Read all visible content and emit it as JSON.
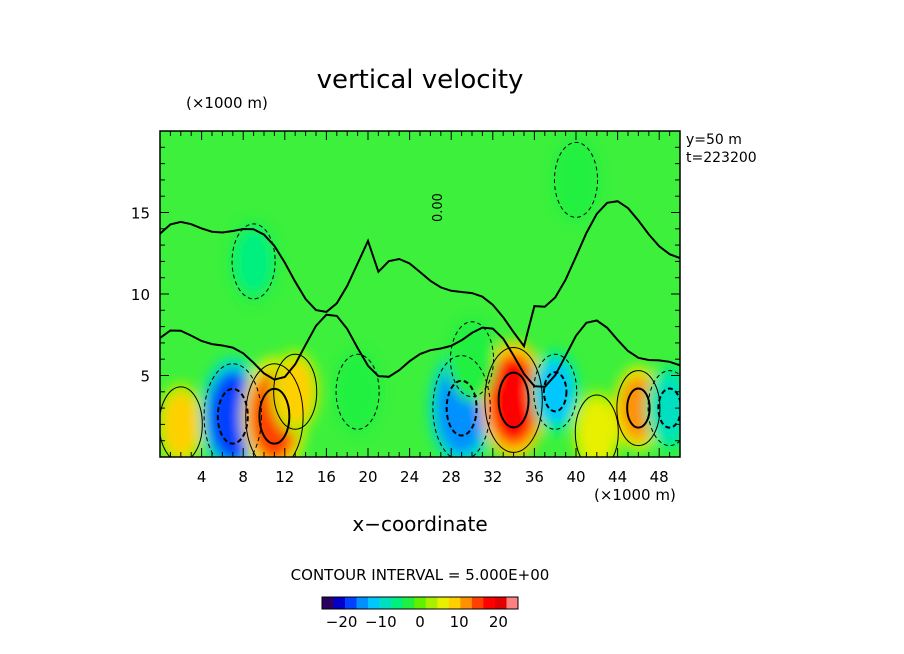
{
  "chart_data": {
    "type": "heatmap",
    "title": "vertical velocity",
    "xlabel": "x−coordinate",
    "x_unit": "(×1000 m)",
    "y_unit": "(×1000 m)",
    "xlim": [
      0,
      50
    ],
    "ylim": [
      0,
      20
    ],
    "x_ticks": [
      4,
      8,
      12,
      16,
      20,
      24,
      28,
      32,
      36,
      40,
      44,
      48
    ],
    "y_ticks": [
      5,
      10,
      15
    ],
    "y_info": "y=50  m",
    "t_info": "t=223200",
    "contour_label": "0.00",
    "contour_interval_text": "CONTOUR INTERVAL = 5.000E+00",
    "colorbar": {
      "ticks": [
        -20,
        -10,
        0,
        10,
        20
      ],
      "tick_labels": [
        "−20",
        "−10",
        "0",
        "10",
        "20"
      ],
      "range": [
        -25,
        25
      ],
      "colors": [
        "#2a0060",
        "#0000c8",
        "#0040ff",
        "#0090ff",
        "#00c8ff",
        "#00e0c0",
        "#00f080",
        "#20f040",
        "#60f000",
        "#a8f000",
        "#e8f000",
        "#ffd000",
        "#ff9000",
        "#ff4000",
        "#ff0000",
        "#e00000",
        "#ff8080"
      ]
    },
    "cells": [
      {
        "x": 2,
        "y": 2,
        "value": 8
      },
      {
        "x": 7,
        "y": 2.5,
        "value": -17
      },
      {
        "x": 11,
        "y": 2.5,
        "value": 14
      },
      {
        "x": 13,
        "y": 4,
        "value": 8
      },
      {
        "x": 19,
        "y": 4,
        "value": -4
      },
      {
        "x": 29,
        "y": 3,
        "value": -15
      },
      {
        "x": 34,
        "y": 3.5,
        "value": 18
      },
      {
        "x": 38,
        "y": 4,
        "value": -12
      },
      {
        "x": 42,
        "y": 1.5,
        "value": 6
      },
      {
        "x": 46,
        "y": 3,
        "value": 12
      },
      {
        "x": 49,
        "y": 3,
        "value": -10
      },
      {
        "x": 9,
        "y": 12,
        "value": -6
      },
      {
        "x": 30,
        "y": 6,
        "value": -4
      },
      {
        "x": 40,
        "y": 17,
        "value": -3
      }
    ]
  }
}
